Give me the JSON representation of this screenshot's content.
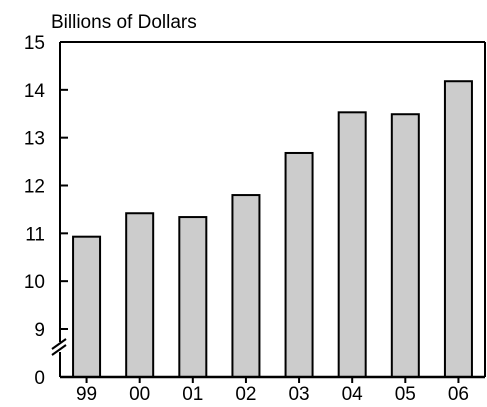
{
  "chart_data": {
    "type": "bar",
    "title": "Billions of Dollars",
    "xlabel": "",
    "ylabel": "",
    "categories": [
      "99",
      "00",
      "01",
      "02",
      "03",
      "04",
      "05",
      "06"
    ],
    "values": [
      10.93,
      11.42,
      11.34,
      11.8,
      12.68,
      13.53,
      13.49,
      14.18
    ],
    "ylim": [
      9,
      15
    ],
    "y_ticks": [
      "0",
      "9",
      "10",
      "11",
      "12",
      "13",
      "14",
      "15"
    ],
    "axis_break": true,
    "grid": false,
    "legend": "none",
    "colors": {
      "bar_fill": "#cccccc",
      "bar_stroke": "#000000",
      "axis": "#000000"
    }
  }
}
